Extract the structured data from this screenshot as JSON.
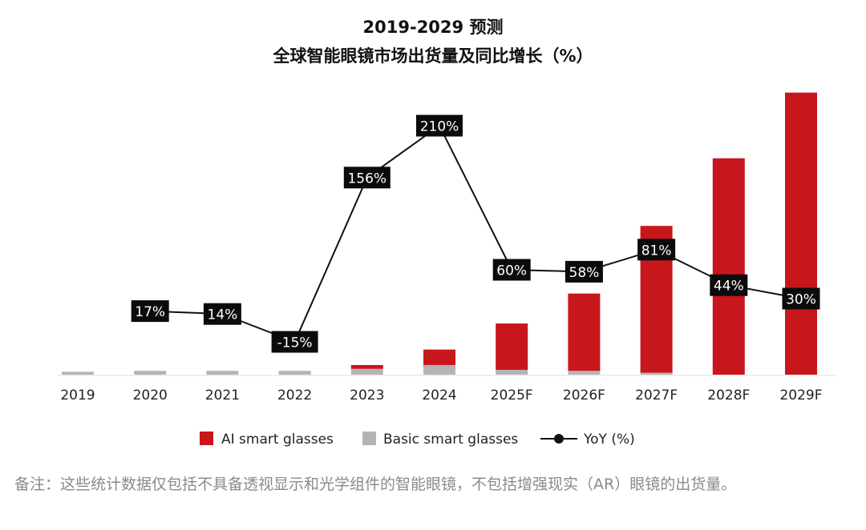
{
  "chart_data": {
    "type": "bar",
    "title": "2019-2029 预测",
    "subtitle": "全球智能眼镜市场出货量及同比增长（%）",
    "categories": [
      "2019",
      "2020",
      "2021",
      "2022",
      "2023",
      "2024",
      "2025F",
      "2026F",
      "2027F",
      "2028F",
      "2029F"
    ],
    "stacked": true,
    "series": [
      {
        "name": "AI smart glasses",
        "kind": "bar",
        "color": "#c8161d",
        "values": [
          0,
          0,
          0,
          0,
          2,
          8,
          24,
          40,
          76,
          112,
          146
        ]
      },
      {
        "name": "Basic smart glasses",
        "kind": "bar",
        "color": "#b5b5b5",
        "values": [
          1.5,
          2,
          2,
          2,
          3,
          5,
          2.5,
          2,
          1,
          0,
          0
        ]
      },
      {
        "name": "YoY (%)",
        "kind": "line",
        "color": "#111111",
        "values": [
          null,
          17,
          14,
          -15,
          156,
          210,
          60,
          58,
          81,
          44,
          30
        ],
        "labels": [
          null,
          "17%",
          "14%",
          "-15%",
          "156%",
          "210%",
          "60%",
          "58%",
          "81%",
          "44%",
          "30%"
        ]
      }
    ],
    "ylim_bars": [
      0,
      150
    ],
    "ylim_line": [
      -40,
      220
    ],
    "grid": false,
    "legend_position": "bottom"
  },
  "note": "备注：这些统计数据仅包括不具备透视显示和光学组件的智能眼镜，不包括增强现实（AR）眼镜的出货量。"
}
